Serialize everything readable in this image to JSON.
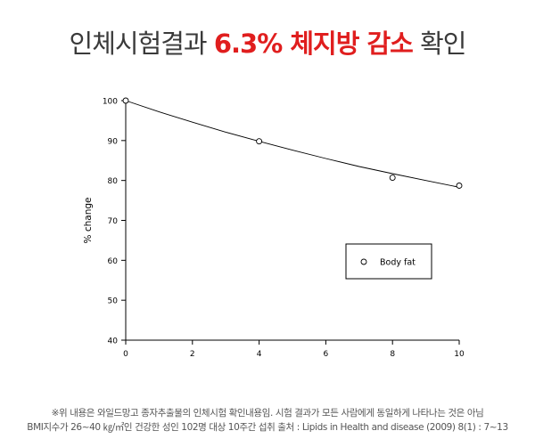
{
  "headline": {
    "prefix": "인체시험결과 ",
    "highlight": "6.3% 체지방 감소",
    "suffix": " 확인"
  },
  "chart_data": {
    "type": "scatter",
    "ylabel": "% change",
    "xlabel": "",
    "xlim": [
      0,
      10
    ],
    "ylim": [
      40,
      100
    ],
    "x_ticks": [
      0,
      2,
      4,
      6,
      8,
      10
    ],
    "y_ticks": [
      40,
      50,
      60,
      70,
      80,
      90,
      100
    ],
    "grid": false,
    "legend_position": "right",
    "series": [
      {
        "name": "Body fat",
        "marker": "open-circle",
        "x": [
          0,
          4,
          8,
          10
        ],
        "y": [
          100,
          89.8,
          80.7,
          78.7
        ]
      }
    ],
    "fit_curve": {
      "x": [
        0,
        1,
        2,
        3,
        4,
        5,
        6,
        7,
        8,
        9,
        10
      ],
      "y": [
        100,
        97.2,
        94.6,
        92.1,
        89.8,
        87.6,
        85.5,
        83.5,
        81.7,
        80.0,
        78.3
      ]
    },
    "colors": {
      "axis": "#000000",
      "marker_fill": "#ffffff",
      "curve": "#000000"
    }
  },
  "footnote": {
    "line1": "※위 내용은 와일드망고 종자추출물의 인체시험 확인내용임. 시험 결과가 모든 사람에게 동일하게 나타나는 것은 아님",
    "line2": "BMI지수가 26~40 ㎏/㎡인 건강한 성인 102명 대상 10주간 섭취  출처 : Lipids in Health and disease (2009) 8(1) : 7~13"
  }
}
